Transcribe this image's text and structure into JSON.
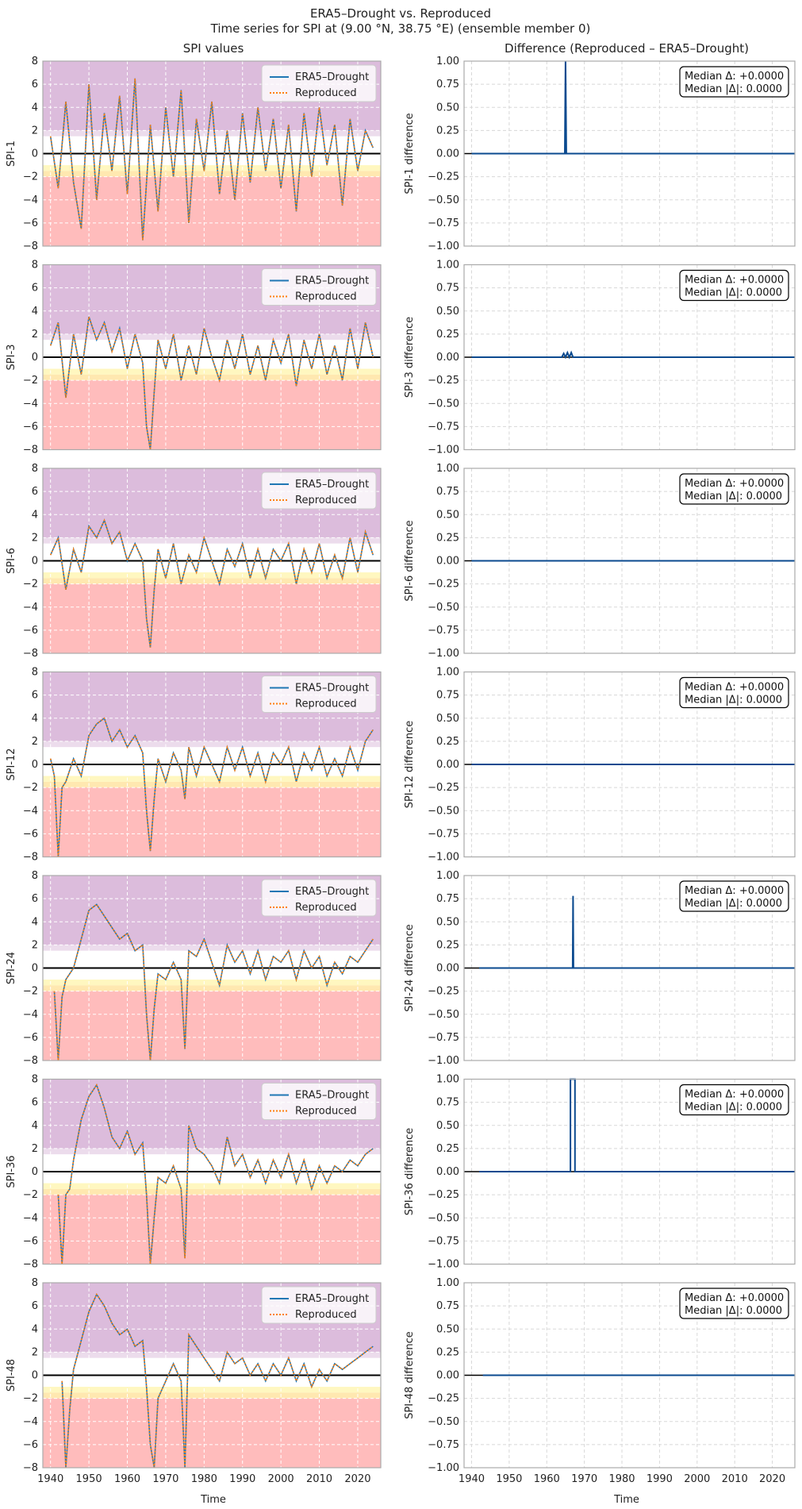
{
  "figure": {
    "title": "ERA5–Drought vs. Reproduced",
    "subtitle": "Time series for SPI at (9.00 °N, 38.75 °E) (ensemble member 0)",
    "left_column_title": "SPI values",
    "right_column_title": "Difference (Reproduced – ERA5–Drought)",
    "xlabel": "Time"
  },
  "colors": {
    "era5": "#1f77b4",
    "reproduced": "#ff7f0e",
    "diff": "#0b4a8f",
    "band_wet": "#dcbcdc",
    "band_moderate_wet": "#ecdcec",
    "band_mild_dry": "#fff7c0",
    "band_moderate_dry": "#ffe8b0",
    "band_severe_dry": "#ffbcbc",
    "zero_line": "#000000",
    "grid": "#d8d8d8",
    "frame": "#aaaaaa"
  },
  "chart_data": [
    {
      "type": "line",
      "panel": "SPI values",
      "ylabel": "SPI-1",
      "xlim": [
        1938,
        2026
      ],
      "ylim": [
        -8,
        8
      ],
      "xticks": [
        "1940",
        "1950",
        "1960",
        "1970",
        "1980",
        "1990",
        "2000",
        "2010",
        "2020"
      ],
      "yticks": [
        "8",
        "6",
        "4",
        "2",
        "0",
        "−2",
        "−4",
        "−6",
        "−8"
      ],
      "legend_position": "top-right",
      "grid": true,
      "series": [
        {
          "name": "ERA5–Drought",
          "style": "solid"
        },
        {
          "name": "Reproduced",
          "style": "dotted"
        }
      ],
      "x": [
        1940,
        1942,
        1944,
        1946,
        1948,
        1950,
        1952,
        1954,
        1956,
        1958,
        1960,
        1962,
        1964,
        1966,
        1968,
        1970,
        1972,
        1974,
        1976,
        1978,
        1980,
        1982,
        1984,
        1986,
        1988,
        1990,
        1992,
        1994,
        1996,
        1998,
        2000,
        2002,
        2004,
        2006,
        2008,
        2010,
        2012,
        2014,
        2016,
        2018,
        2020,
        2022,
        2024
      ],
      "values": [
        1.5,
        -3.0,
        4.5,
        -2.5,
        -6.5,
        6.0,
        -4.0,
        3.5,
        -1.5,
        5.0,
        -3.5,
        6.5,
        -7.5,
        2.5,
        -5.0,
        4.0,
        -2.0,
        5.5,
        -6.0,
        3.0,
        -1.5,
        4.5,
        -3.5,
        2.0,
        -4.0,
        3.5,
        -2.5,
        4.0,
        -1.5,
        3.0,
        -3.0,
        2.5,
        -5.0,
        3.5,
        -2.0,
        4.0,
        -1.0,
        2.5,
        -4.5,
        3.0,
        -1.5,
        2.0,
        0.5
      ]
    },
    {
      "type": "line",
      "panel": "Difference",
      "ylabel": "SPI-1 difference",
      "xlim": [
        1938,
        2026
      ],
      "ylim": [
        -1,
        1
      ],
      "yticks": [
        "1.00",
        "0.75",
        "0.50",
        "0.25",
        "0.00",
        "−0.25",
        "−0.50",
        "−0.75",
        "−1.00"
      ],
      "annotation": {
        "line1": "Median Δ: +0.0000",
        "line2": "Median |Δ|: 0.0000"
      },
      "x": [
        1940,
        1964.8,
        1965.0,
        1965.2,
        2026
      ],
      "values": [
        0.0,
        0.0,
        1.0,
        0.0,
        0.0
      ]
    },
    {
      "type": "line",
      "panel": "SPI values",
      "ylabel": "SPI-3",
      "xlim": [
        1938,
        2026
      ],
      "ylim": [
        -8,
        8
      ],
      "series": [
        {
          "name": "ERA5–Drought",
          "style": "solid"
        },
        {
          "name": "Reproduced",
          "style": "dotted"
        }
      ],
      "x": [
        1940,
        1942,
        1944,
        1946,
        1948,
        1950,
        1952,
        1954,
        1956,
        1958,
        1960,
        1962,
        1964,
        1965,
        1966,
        1967,
        1968,
        1970,
        1972,
        1974,
        1976,
        1978,
        1980,
        1982,
        1984,
        1986,
        1988,
        1990,
        1992,
        1994,
        1996,
        1998,
        2000,
        2002,
        2004,
        2006,
        2008,
        2010,
        2012,
        2014,
        2016,
        2018,
        2020,
        2022,
        2024
      ],
      "values": [
        1.0,
        3.0,
        -3.5,
        2.0,
        -1.5,
        3.5,
        1.5,
        3.0,
        0.5,
        2.5,
        -1.0,
        2.0,
        -0.5,
        -6.0,
        -8.0,
        -3.0,
        1.5,
        -1.0,
        2.0,
        -2.0,
        1.0,
        -1.5,
        2.5,
        0.0,
        -2.0,
        1.5,
        -1.0,
        2.0,
        -1.5,
        1.0,
        -2.0,
        1.5,
        -0.5,
        2.0,
        -2.5,
        1.5,
        -1.0,
        2.0,
        -1.5,
        1.0,
        -2.0,
        2.5,
        -1.0,
        3.0,
        0.0
      ]
    },
    {
      "type": "line",
      "panel": "Difference",
      "ylabel": "SPI-3 difference",
      "xlim": [
        1938,
        2026
      ],
      "ylim": [
        -1,
        1
      ],
      "annotation": {
        "line1": "Median Δ: +0.0000",
        "line2": "Median |Δ|: 0.0000"
      },
      "x": [
        1940,
        1964,
        1964.5,
        1965,
        1965.5,
        1966,
        1966.5,
        1967,
        2026
      ],
      "values": [
        0.0,
        0.0,
        0.04,
        0.0,
        0.05,
        0.0,
        0.05,
        0.0,
        0.0
      ]
    },
    {
      "type": "line",
      "panel": "SPI values",
      "ylabel": "SPI-6",
      "xlim": [
        1938,
        2026
      ],
      "ylim": [
        -8,
        8
      ],
      "series": [
        {
          "name": "ERA5–Drought",
          "style": "solid"
        },
        {
          "name": "Reproduced",
          "style": "dotted"
        }
      ],
      "x": [
        1940,
        1942,
        1944,
        1946,
        1948,
        1950,
        1952,
        1954,
        1956,
        1958,
        1960,
        1962,
        1964,
        1965,
        1966,
        1967,
        1968,
        1970,
        1972,
        1974,
        1976,
        1978,
        1980,
        1982,
        1984,
        1986,
        1988,
        1990,
        1992,
        1994,
        1996,
        1998,
        2000,
        2002,
        2004,
        2006,
        2008,
        2010,
        2012,
        2014,
        2016,
        2018,
        2020,
        2022,
        2024
      ],
      "values": [
        0.5,
        2.0,
        -2.5,
        1.0,
        -1.0,
        3.0,
        2.0,
        3.5,
        1.5,
        2.5,
        0.0,
        1.5,
        0.0,
        -5.0,
        -7.5,
        -2.5,
        1.0,
        -1.5,
        1.5,
        -2.0,
        0.5,
        -1.0,
        2.0,
        0.0,
        -2.0,
        1.0,
        -0.5,
        1.5,
        -1.5,
        1.0,
        -1.5,
        1.0,
        0.0,
        1.5,
        -2.0,
        1.0,
        -1.0,
        1.5,
        -1.5,
        0.5,
        -1.5,
        2.0,
        -1.0,
        2.5,
        0.5
      ]
    },
    {
      "type": "line",
      "panel": "Difference",
      "ylabel": "SPI-6 difference",
      "xlim": [
        1938,
        2026
      ],
      "ylim": [
        -1,
        1
      ],
      "annotation": {
        "line1": "Median Δ: +0.0000",
        "line2": "Median |Δ|: 0.0000"
      },
      "x": [
        1940,
        2026
      ],
      "values": [
        0.0,
        0.0
      ]
    },
    {
      "type": "line",
      "panel": "SPI values",
      "ylabel": "SPI-12",
      "xlim": [
        1938,
        2026
      ],
      "ylim": [
        -8,
        8
      ],
      "series": [
        {
          "name": "ERA5–Drought",
          "style": "solid"
        },
        {
          "name": "Reproduced",
          "style": "dotted"
        }
      ],
      "x": [
        1940,
        1941,
        1942,
        1943,
        1944,
        1946,
        1948,
        1950,
        1952,
        1954,
        1956,
        1958,
        1960,
        1962,
        1964,
        1965,
        1966,
        1967,
        1968,
        1970,
        1972,
        1974,
        1975,
        1976,
        1978,
        1980,
        1982,
        1984,
        1986,
        1988,
        1990,
        1992,
        1994,
        1996,
        1998,
        2000,
        2002,
        2004,
        2006,
        2008,
        2010,
        2012,
        2014,
        2016,
        2018,
        2020,
        2022,
        2024
      ],
      "values": [
        0.5,
        -1.0,
        -8.0,
        -2.0,
        -1.5,
        0.5,
        -1.0,
        2.5,
        3.5,
        4.0,
        2.0,
        3.0,
        1.5,
        2.5,
        1.0,
        -4.0,
        -7.5,
        -3.0,
        0.5,
        -1.5,
        1.0,
        -0.5,
        -3.0,
        1.5,
        -1.0,
        1.5,
        0.0,
        -1.5,
        1.5,
        -0.5,
        1.5,
        -1.0,
        1.0,
        -1.5,
        1.0,
        0.0,
        1.5,
        -1.5,
        1.0,
        -0.5,
        1.5,
        -1.0,
        0.5,
        -1.0,
        1.5,
        -0.5,
        2.0,
        3.0
      ]
    },
    {
      "type": "line",
      "panel": "Difference",
      "ylabel": "SPI-12 difference",
      "xlim": [
        1938,
        2026
      ],
      "ylim": [
        -1,
        1
      ],
      "annotation": {
        "line1": "Median Δ: +0.0000",
        "line2": "Median |Δ|: 0.0000"
      },
      "x": [
        1940,
        2026
      ],
      "values": [
        0.0,
        0.0
      ]
    },
    {
      "type": "line",
      "panel": "SPI values",
      "ylabel": "SPI-24",
      "xlim": [
        1938,
        2026
      ],
      "ylim": [
        -8,
        8
      ],
      "series": [
        {
          "name": "ERA5–Drought",
          "style": "solid"
        },
        {
          "name": "Reproduced",
          "style": "dotted"
        }
      ],
      "x": [
        1941,
        1942,
        1943,
        1944,
        1946,
        1948,
        1950,
        1952,
        1954,
        1956,
        1958,
        1960,
        1962,
        1964,
        1965,
        1966,
        1967,
        1968,
        1970,
        1972,
        1974,
        1975,
        1976,
        1978,
        1980,
        1982,
        1984,
        1986,
        1988,
        1990,
        1992,
        1994,
        1996,
        1998,
        2000,
        2002,
        2004,
        2006,
        2008,
        2010,
        2012,
        2014,
        2016,
        2018,
        2020,
        2022,
        2024
      ],
      "values": [
        -2.0,
        -8.0,
        -2.5,
        -1.0,
        0.0,
        2.5,
        5.0,
        5.5,
        4.5,
        3.5,
        2.5,
        3.0,
        1.5,
        2.0,
        -4.0,
        -8.0,
        -3.5,
        -0.5,
        -1.0,
        0.5,
        -1.0,
        -7.0,
        1.5,
        1.0,
        2.5,
        0.5,
        -1.5,
        2.0,
        0.5,
        1.5,
        -0.5,
        1.5,
        -1.0,
        1.0,
        0.5,
        1.5,
        -1.0,
        1.5,
        0.0,
        1.0,
        -1.5,
        0.5,
        -0.5,
        1.0,
        0.5,
        1.5,
        2.5
      ]
    },
    {
      "type": "line",
      "panel": "Difference",
      "ylabel": "SPI-24 difference",
      "xlim": [
        1938,
        2026
      ],
      "ylim": [
        -1,
        1
      ],
      "annotation": {
        "line1": "Median Δ: +0.0000",
        "line2": "Median |Δ|: 0.0000"
      },
      "x": [
        1942,
        1966.9,
        1967.0,
        1967.1,
        2026
      ],
      "values": [
        0.0,
        0.0,
        0.78,
        0.0,
        0.0
      ]
    },
    {
      "type": "line",
      "panel": "SPI values",
      "ylabel": "SPI-36",
      "xlim": [
        1938,
        2026
      ],
      "ylim": [
        -8,
        8
      ],
      "series": [
        {
          "name": "ERA5–Drought",
          "style": "solid"
        },
        {
          "name": "Reproduced",
          "style": "dotted"
        }
      ],
      "x": [
        1942,
        1943,
        1944,
        1945,
        1946,
        1948,
        1950,
        1952,
        1954,
        1956,
        1958,
        1960,
        1962,
        1964,
        1965,
        1966,
        1967,
        1968,
        1970,
        1972,
        1974,
        1975,
        1976,
        1978,
        1980,
        1982,
        1984,
        1986,
        1988,
        1990,
        1992,
        1994,
        1996,
        1998,
        2000,
        2002,
        2004,
        2006,
        2008,
        2010,
        2012,
        2014,
        2016,
        2018,
        2020,
        2022,
        2024
      ],
      "values": [
        -2.0,
        -8.0,
        -2.0,
        -1.5,
        1.0,
        4.5,
        6.5,
        7.5,
        5.5,
        3.0,
        2.0,
        3.5,
        1.5,
        2.5,
        -2.0,
        -8.0,
        -4.0,
        -0.5,
        -1.0,
        0.5,
        -1.5,
        -7.5,
        4.0,
        2.0,
        1.5,
        0.5,
        -1.0,
        3.0,
        0.5,
        1.5,
        -0.5,
        1.0,
        -1.0,
        1.0,
        -0.5,
        1.5,
        -1.0,
        1.0,
        -1.5,
        0.5,
        -1.0,
        0.5,
        0.0,
        1.0,
        0.5,
        1.5,
        2.0
      ]
    },
    {
      "type": "line",
      "panel": "Difference",
      "ylabel": "SPI-36 difference",
      "xlim": [
        1938,
        2026
      ],
      "ylim": [
        -1,
        1
      ],
      "annotation": {
        "line1": "Median Δ: +0.0000",
        "line2": "Median |Δ|: 0.0000"
      },
      "x": [
        1942,
        1966.3,
        1966.3,
        1967.5,
        1967.5,
        2026
      ],
      "values": [
        0.0,
        0.0,
        1.0,
        1.0,
        0.0,
        0.0
      ]
    },
    {
      "type": "line",
      "panel": "SPI values",
      "ylabel": "SPI-48",
      "xlim": [
        1938,
        2026
      ],
      "ylim": [
        -8,
        8
      ],
      "series": [
        {
          "name": "ERA5–Drought",
          "style": "solid"
        },
        {
          "name": "Reproduced",
          "style": "dotted"
        }
      ],
      "x": [
        1943,
        1944,
        1945,
        1946,
        1948,
        1950,
        1952,
        1954,
        1956,
        1958,
        1960,
        1962,
        1964,
        1965,
        1966,
        1967,
        1968,
        1970,
        1972,
        1974,
        1975,
        1976,
        1978,
        1980,
        1982,
        1984,
        1986,
        1988,
        1990,
        1992,
        1994,
        1996,
        1998,
        2000,
        2002,
        2004,
        2006,
        2008,
        2010,
        2012,
        2014,
        2016,
        2018,
        2020,
        2022,
        2024
      ],
      "values": [
        -0.5,
        -8.0,
        -3.0,
        0.5,
        3.0,
        5.5,
        7.0,
        6.0,
        4.5,
        3.5,
        4.0,
        2.5,
        3.0,
        -1.0,
        -6.0,
        -8.0,
        -2.0,
        -0.5,
        1.0,
        -0.5,
        -8.0,
        3.5,
        2.5,
        1.5,
        0.5,
        -0.5,
        2.0,
        1.0,
        1.5,
        0.0,
        1.0,
        -0.5,
        1.0,
        0.0,
        1.5,
        -0.5,
        1.0,
        -1.0,
        0.5,
        -0.5,
        1.0,
        0.5,
        1.0,
        1.5,
        2.0,
        2.5
      ]
    },
    {
      "type": "line",
      "panel": "Difference",
      "ylabel": "SPI-48 difference",
      "xlim": [
        1938,
        2026
      ],
      "ylim": [
        -1,
        1
      ],
      "annotation": {
        "line1": "Median Δ: +0.0000",
        "line2": "Median |Δ|: 0.0000"
      },
      "x": [
        1943,
        2026
      ],
      "values": [
        0.0,
        0.0
      ]
    }
  ]
}
